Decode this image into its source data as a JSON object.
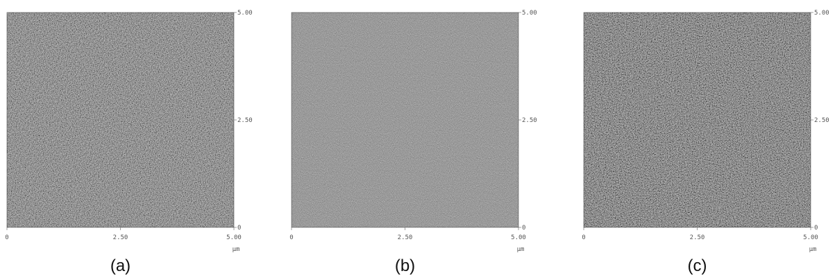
{
  "panels": [
    {
      "caption": "(a)",
      "x_ticks": [
        "0",
        "2.50",
        "5.00"
      ],
      "y_ticks": [
        "0",
        "2.50",
        "5.00"
      ],
      "unit": "µm"
    },
    {
      "caption": "(b)",
      "x_ticks": [
        "0",
        "2.50",
        "5.00"
      ],
      "y_ticks": [
        "0",
        "2.50",
        "5.00"
      ],
      "unit": "µm"
    },
    {
      "caption": "(c)",
      "x_ticks": [
        "0",
        "2.50",
        "5.00"
      ],
      "y_ticks": [
        "0",
        "2.50",
        "5.00"
      ],
      "unit": "µm"
    }
  ]
}
